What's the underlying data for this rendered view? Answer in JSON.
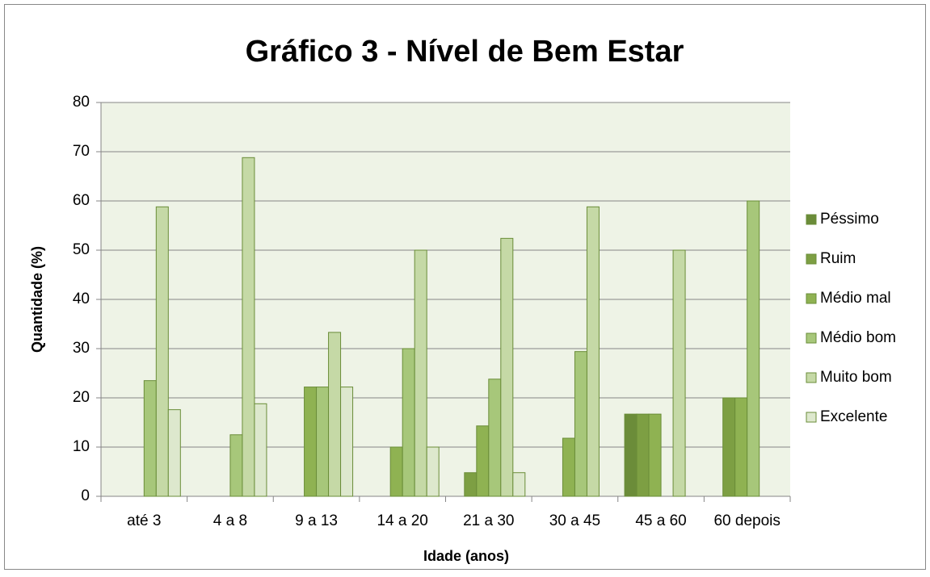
{
  "chart_data": {
    "type": "bar",
    "title": "Gráfico 3 - Nível de Bem Estar",
    "x_label": "Idade (anos)",
    "y_label": "Quantidade (%)",
    "categories": [
      "até 3",
      "4 a 8",
      "9 a 13",
      "14 a 20",
      "21 a 30",
      "30 a 45",
      "45 a  60",
      "60 depois"
    ],
    "series": [
      {
        "name": "Péssimo",
        "color": "#6b8c39",
        "values": [
          0,
          0,
          0,
          0,
          0,
          0,
          16.7,
          0
        ]
      },
      {
        "name": "Ruim",
        "color": "#7d9f43",
        "values": [
          0,
          0,
          0,
          0,
          4.8,
          0,
          16.7,
          20
        ]
      },
      {
        "name": "Médio mal",
        "color": "#8fb252",
        "values": [
          0,
          0,
          22.2,
          10,
          14.3,
          11.8,
          16.7,
          20
        ]
      },
      {
        "name": "Médio bom",
        "color": "#a7c77a",
        "values": [
          23.5,
          12.5,
          22.2,
          30,
          23.8,
          29.4,
          0,
          60
        ]
      },
      {
        "name": "Muito bom",
        "color": "#c5d9a6",
        "values": [
          58.8,
          68.8,
          33.3,
          50,
          52.4,
          58.8,
          50,
          0
        ]
      },
      {
        "name": "Excelente",
        "color": "#dde8cd",
        "values": [
          17.6,
          18.8,
          22.2,
          10,
          4.8,
          0,
          0,
          0
        ]
      }
    ],
    "ylim": [
      0,
      80
    ],
    "yticks": [
      0,
      10,
      20,
      30,
      40,
      50,
      60,
      70,
      80
    ],
    "grid": true,
    "legend": "right"
  }
}
